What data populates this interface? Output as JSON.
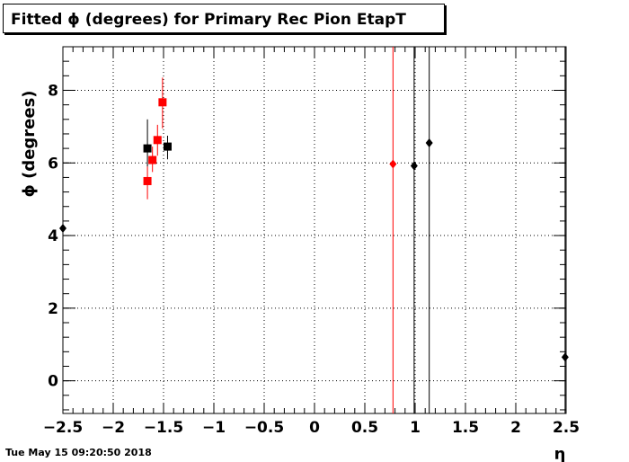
{
  "header": {
    "title": "Fitted ϕ (degrees) for Primary Rec Pion EtapT"
  },
  "footer": {
    "timestamp": "Tue May 15 09:20:50 2018"
  },
  "colors": {
    "black_series": "#000000",
    "red_series": "#ff0000",
    "grid": "#000000"
  },
  "chart_data": {
    "type": "scatter",
    "title": "Fitted ϕ (degrees) for Primary Rec Pion EtapT",
    "xlabel": "η",
    "ylabel": "ϕ (degrees)",
    "xlim": [
      -2.5,
      2.5
    ],
    "ylim": [
      -0.9,
      9.2
    ],
    "x_ticks": [
      -2.5,
      -2,
      -1.5,
      -1,
      -0.5,
      0,
      0.5,
      1,
      1.5,
      2,
      2.5
    ],
    "x_tick_labels": [
      "−2.5",
      "−2",
      "−1.5",
      "−1",
      "−0.5",
      "0",
      "0.5",
      "1",
      "1.5",
      "2",
      "2.5"
    ],
    "y_ticks": [
      0,
      2,
      4,
      6,
      8
    ],
    "y_tick_labels": [
      "0",
      "2",
      "4",
      "6",
      "8"
    ],
    "grid": true,
    "series": [
      {
        "color": "#000000",
        "points": [
          {
            "x": -2.5,
            "y": 4.2,
            "ylo": 4.2,
            "yhi": 4.2,
            "marker": "diamond"
          },
          {
            "x": -1.66,
            "y": 6.4,
            "ylo": 5.9,
            "yhi": 7.2,
            "marker": "square"
          },
          {
            "x": -1.46,
            "y": 6.45,
            "ylo": 6.1,
            "yhi": 6.75,
            "marker": "square"
          },
          {
            "x": 0.99,
            "y": 5.92,
            "ylo": -0.9,
            "yhi": 9.2,
            "marker": "diamond"
          },
          {
            "x": 1.14,
            "y": 6.55,
            "ylo": -0.9,
            "yhi": 9.2,
            "marker": "diamond"
          },
          {
            "x": 2.49,
            "y": 0.65,
            "ylo": -0.9,
            "yhi": 9.2,
            "marker": "diamond"
          }
        ]
      },
      {
        "color": "#ff0000",
        "points": [
          {
            "x": -1.66,
            "y": 5.5,
            "ylo": 5.0,
            "yhi": 5.9,
            "marker": "square"
          },
          {
            "x": -1.61,
            "y": 6.08,
            "ylo": 5.75,
            "yhi": 6.45,
            "marker": "square"
          },
          {
            "x": -1.56,
            "y": 6.63,
            "ylo": 6.2,
            "yhi": 7.05,
            "marker": "square"
          },
          {
            "x": -1.51,
            "y": 7.67,
            "ylo": 6.95,
            "yhi": 8.35,
            "marker": "square"
          },
          {
            "x": 0.78,
            "y": 5.97,
            "ylo": -0.9,
            "yhi": 9.2,
            "marker": "diamond"
          }
        ]
      }
    ]
  }
}
